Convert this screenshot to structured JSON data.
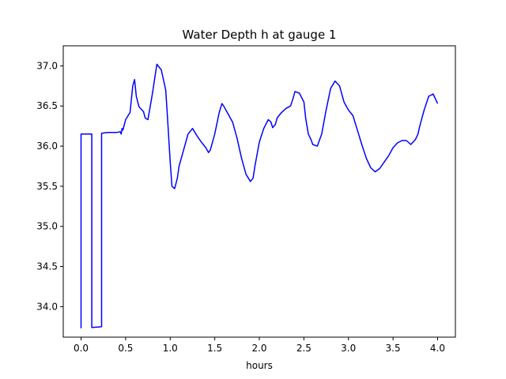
{
  "chart_data": {
    "type": "line",
    "title": "Water Depth h at gauge 1",
    "xlabel": "hours",
    "ylabel": "",
    "xlim": [
      -0.2,
      4.2
    ],
    "ylim": [
      33.62,
      37.25
    ],
    "xticks": [
      0.0,
      0.5,
      1.0,
      1.5,
      2.0,
      2.5,
      3.0,
      3.5,
      4.0
    ],
    "xtick_labels": [
      "0.0",
      "0.5",
      "1.0",
      "1.5",
      "2.0",
      "2.5",
      "3.0",
      "3.5",
      "4.0"
    ],
    "yticks": [
      34.0,
      34.5,
      35.0,
      35.5,
      36.0,
      36.5,
      37.0
    ],
    "ytick_labels": [
      "34.0",
      "34.5",
      "35.0",
      "35.5",
      "36.0",
      "36.5",
      "37.0"
    ],
    "grid": false,
    "legend": "none",
    "series": [
      {
        "color": "#0000ff",
        "x": [
          0.0,
          0.0,
          0.12,
          0.12,
          0.23,
          0.23,
          0.3,
          0.4,
          0.44,
          0.45,
          0.46,
          0.47,
          0.5,
          0.55,
          0.58,
          0.6,
          0.62,
          0.65,
          0.7,
          0.72,
          0.75,
          0.8,
          0.85,
          0.9,
          0.95,
          0.97,
          1.0,
          1.02,
          1.05,
          1.08,
          1.1,
          1.15,
          1.2,
          1.25,
          1.3,
          1.35,
          1.4,
          1.43,
          1.45,
          1.5,
          1.55,
          1.58,
          1.6,
          1.65,
          1.7,
          1.75,
          1.8,
          1.85,
          1.9,
          1.93,
          1.95,
          2.0,
          2.05,
          2.1,
          2.13,
          2.15,
          2.18,
          2.2,
          2.22,
          2.25,
          2.3,
          2.35,
          2.38,
          2.4,
          2.45,
          2.5,
          2.52,
          2.55,
          2.58,
          2.6,
          2.65,
          2.7,
          2.75,
          2.8,
          2.85,
          2.9,
          2.95,
          3.0,
          3.05,
          3.1,
          3.15,
          3.2,
          3.25,
          3.3,
          3.35,
          3.4,
          3.45,
          3.5,
          3.55,
          3.6,
          3.65,
          3.7,
          3.75,
          3.78,
          3.8,
          3.85,
          3.9,
          3.95,
          4.0
        ],
        "y": [
          33.73,
          36.15,
          36.15,
          33.74,
          33.75,
          36.16,
          36.17,
          36.17,
          36.18,
          36.15,
          36.22,
          36.2,
          36.33,
          36.42,
          36.75,
          36.83,
          36.62,
          36.49,
          36.43,
          36.35,
          36.33,
          36.65,
          37.02,
          36.95,
          36.7,
          36.35,
          35.8,
          35.5,
          35.47,
          35.6,
          35.75,
          35.95,
          36.15,
          36.22,
          36.13,
          36.05,
          35.98,
          35.92,
          35.95,
          36.15,
          36.42,
          36.53,
          36.5,
          36.4,
          36.3,
          36.1,
          35.85,
          35.65,
          35.56,
          35.6,
          35.75,
          36.05,
          36.22,
          36.33,
          36.3,
          36.23,
          36.27,
          36.35,
          36.38,
          36.42,
          36.47,
          36.5,
          36.6,
          36.68,
          36.66,
          36.55,
          36.35,
          36.15,
          36.08,
          36.02,
          36.0,
          36.15,
          36.45,
          36.72,
          36.81,
          36.75,
          36.55,
          36.45,
          36.38,
          36.2,
          36.02,
          35.85,
          35.73,
          35.68,
          35.72,
          35.8,
          35.88,
          35.98,
          36.04,
          36.07,
          36.07,
          36.02,
          36.08,
          36.15,
          36.25,
          36.45,
          36.62,
          36.65,
          36.53
        ]
      }
    ]
  }
}
